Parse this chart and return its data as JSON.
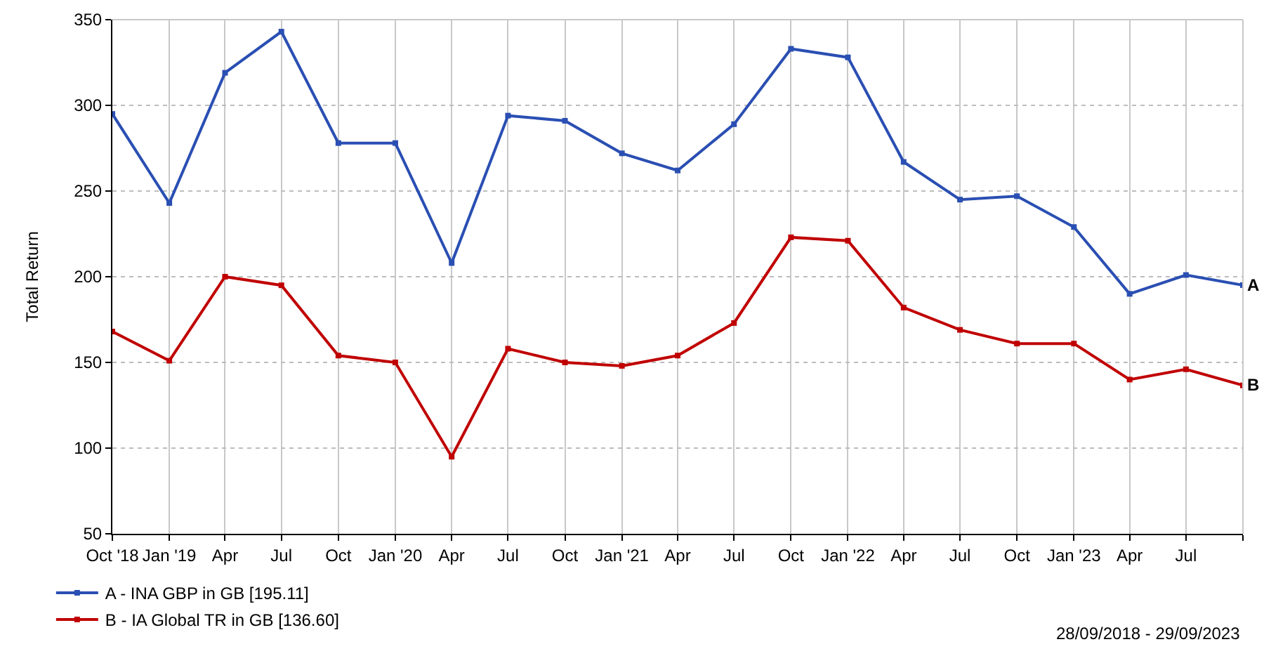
{
  "chart_data": {
    "type": "line",
    "ylabel": "Total Return",
    "x": [
      "2018-10-01",
      "2019-01-01",
      "2019-04-01",
      "2019-07-01",
      "2019-10-01",
      "2020-01-01",
      "2020-04-01",
      "2020-07-01",
      "2020-10-01",
      "2021-01-01",
      "2021-04-01",
      "2021-07-01",
      "2021-10-01",
      "2022-01-01",
      "2022-04-01",
      "2022-07-01",
      "2022-10-01",
      "2023-01-01",
      "2023-04-01",
      "2023-07-01",
      "2023-10-01"
    ],
    "series": [
      {
        "name": "A - INA GBP in GB [195.11]",
        "color": "#2a4fb3",
        "values": [
          295,
          243,
          319,
          343,
          278,
          278,
          208,
          294,
          291,
          272,
          262,
          289,
          333,
          328,
          267,
          245,
          247,
          229,
          190,
          201,
          195.11
        ]
      },
      {
        "name": "B - IA Global TR in GB [136.60]",
        "color": "#c00000",
        "values": [
          168,
          151,
          200,
          195,
          154,
          150,
          95,
          158,
          150,
          148,
          154,
          173,
          223,
          221,
          182,
          169,
          161,
          161,
          140,
          146,
          136.6
        ]
      }
    ],
    "xlim": [
      "2018-10-01",
      "2023-10-01"
    ],
    "xticks": [
      {
        "value": "2018-10-01",
        "label": "Oct '18"
      },
      {
        "value": "2019-01-01",
        "label": "Jan '19"
      },
      {
        "value": "2019-04-01",
        "label": "Apr"
      },
      {
        "value": "2019-07-01",
        "label": "Jul"
      },
      {
        "value": "2019-10-01",
        "label": "Oct"
      },
      {
        "value": "2020-01-01",
        "label": "Jan '20"
      },
      {
        "value": "2020-04-01",
        "label": "Apr"
      },
      {
        "value": "2020-07-01",
        "label": "Jul"
      },
      {
        "value": "2020-10-01",
        "label": "Oct"
      },
      {
        "value": "2021-01-01",
        "label": "Jan '21"
      },
      {
        "value": "2021-04-01",
        "label": "Apr"
      },
      {
        "value": "2021-07-01",
        "label": "Jul"
      },
      {
        "value": "2021-10-01",
        "label": "Oct"
      },
      {
        "value": "2022-01-01",
        "label": "Jan '22"
      },
      {
        "value": "2022-04-01",
        "label": "Apr"
      },
      {
        "value": "2022-07-01",
        "label": "Jul"
      },
      {
        "value": "2022-10-01",
        "label": "Oct"
      },
      {
        "value": "2023-01-01",
        "label": "Jan '23"
      },
      {
        "value": "2023-04-01",
        "label": "Apr"
      },
      {
        "value": "2023-07-01",
        "label": "Jul"
      },
      {
        "value": "2023-10-01",
        "label": null
      }
    ],
    "ylim": [
      50,
      350
    ],
    "yticks": [
      50,
      100,
      150,
      200,
      250,
      300,
      350
    ],
    "grid": true,
    "legend": "bottom left",
    "marker": "square",
    "line_style": "solid",
    "annotations": [
      {
        "text": "A",
        "x": "2023-10-01",
        "y": 195.11
      },
      {
        "text": "B",
        "x": "2023-10-01",
        "y": 136.6
      },
      "28/09/2018 - 29/09/2023"
    ]
  }
}
